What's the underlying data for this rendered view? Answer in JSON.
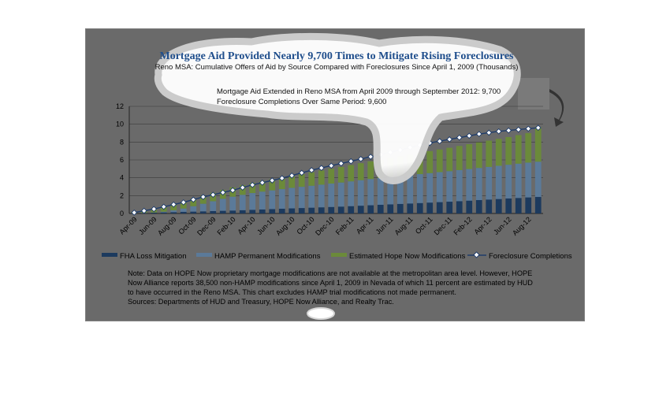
{
  "chart_data": {
    "type": "bar",
    "title": "Mortgage Aid Provided Nearly 9,700 Times to Mitigate Rising Foreclosures",
    "subtitle": "Reno MSA: Cumulative Offers of Aid by Source Compared with Foreclosures Since April 1, 2009  (Thousands)",
    "callout": [
      "Mortgage Aid Extended in Reno MSA from April 2009 through September 2012: 9,700",
      "Foreclosure Completions Over Same Period: 9,600"
    ],
    "xlabel": "",
    "ylabel": "",
    "ylim": [
      0,
      12
    ],
    "yticks": [
      "0",
      "2",
      "4",
      "6",
      "8",
      "10",
      "12"
    ],
    "grid": true,
    "stacked": true,
    "legend_position": "bottom",
    "tick_labels": [
      "Apr-09",
      "Jun-09",
      "Aug-09",
      "Oct-09",
      "Dec-09",
      "Feb-10",
      "Apr-10",
      "Jun-10",
      "Aug-10",
      "Oct-10",
      "Dec-10",
      "Feb-11",
      "Apr-11",
      "Jun-11",
      "Aug-11",
      "Oct-11",
      "Dec-11",
      "Feb-12",
      "Apr-12",
      "Jun-12",
      "Aug-12"
    ],
    "categories": [
      "Apr-09",
      "May-09",
      "Jun-09",
      "Jul-09",
      "Aug-09",
      "Sep-09",
      "Oct-09",
      "Nov-09",
      "Dec-09",
      "Jan-10",
      "Feb-10",
      "Mar-10",
      "Apr-10",
      "May-10",
      "Jun-10",
      "Jul-10",
      "Aug-10",
      "Sep-10",
      "Oct-10",
      "Nov-10",
      "Dec-10",
      "Jan-11",
      "Feb-11",
      "Mar-11",
      "Apr-11",
      "May-11",
      "Jun-11",
      "Jul-11",
      "Aug-11",
      "Sep-11",
      "Oct-11",
      "Nov-11",
      "Dec-11",
      "Jan-12",
      "Feb-12",
      "Mar-12",
      "Apr-12",
      "May-12",
      "Jun-12",
      "Jul-12",
      "Aug-12",
      "Sep-12"
    ],
    "series": [
      {
        "name": "FHA Loss Mitigation",
        "kind": "bar",
        "color": "#1c3a5e",
        "values": [
          0.03,
          0.06,
          0.09,
          0.12,
          0.15,
          0.18,
          0.21,
          0.24,
          0.27,
          0.3,
          0.33,
          0.37,
          0.41,
          0.45,
          0.49,
          0.53,
          0.57,
          0.61,
          0.65,
          0.69,
          0.73,
          0.77,
          0.82,
          0.87,
          0.92,
          0.97,
          1.02,
          1.07,
          1.12,
          1.17,
          1.22,
          1.27,
          1.32,
          1.38,
          1.44,
          1.5,
          1.56,
          1.62,
          1.68,
          1.74,
          1.8,
          1.85
        ]
      },
      {
        "name": "HAMP Permanent Modifications",
        "kind": "bar",
        "color": "#5b7a99",
        "values": [
          0.0,
          0.0,
          0.02,
          0.08,
          0.2,
          0.38,
          0.6,
          0.85,
          1.1,
          1.35,
          1.55,
          1.72,
          1.88,
          2.0,
          2.1,
          2.2,
          2.3,
          2.38,
          2.46,
          2.54,
          2.62,
          2.7,
          2.78,
          2.86,
          2.94,
          3.0,
          3.06,
          3.12,
          3.18,
          3.24,
          3.3,
          3.36,
          3.42,
          3.48,
          3.54,
          3.6,
          3.66,
          3.72,
          3.78,
          3.84,
          3.9,
          3.95
        ]
      },
      {
        "name": "Estimated Hope Now Modifications",
        "kind": "bar",
        "color": "#6b8a3a",
        "values": [
          0.15,
          0.3,
          0.45,
          0.55,
          0.65,
          0.75,
          0.85,
          0.9,
          0.95,
          1.0,
          1.05,
          1.1,
          1.15,
          1.2,
          1.25,
          1.3,
          1.35,
          1.42,
          1.5,
          1.58,
          1.66,
          1.74,
          1.82,
          1.9,
          1.98,
          2.06,
          2.14,
          2.22,
          2.3,
          2.38,
          2.46,
          2.54,
          2.62,
          2.7,
          2.78,
          2.86,
          2.94,
          3.02,
          3.1,
          3.2,
          3.3,
          3.9
        ]
      },
      {
        "name": "Foreclosure Completions",
        "kind": "line",
        "color": "#1f3c6b",
        "values": [
          0.1,
          0.3,
          0.5,
          0.75,
          1.0,
          1.25,
          1.55,
          1.85,
          2.1,
          2.35,
          2.6,
          2.9,
          3.2,
          3.45,
          3.7,
          3.95,
          4.25,
          4.55,
          4.85,
          5.1,
          5.35,
          5.6,
          5.85,
          6.1,
          6.35,
          6.6,
          6.85,
          7.1,
          7.4,
          7.65,
          7.9,
          8.1,
          8.3,
          8.5,
          8.7,
          8.9,
          9.05,
          9.2,
          9.3,
          9.4,
          9.5,
          9.6
        ]
      }
    ],
    "notes": [
      "Note: Data on HOPE Now proprietary mortgage modifications are not available at the metropolitan area level. However, HOPE",
      "Now Alliance reports 38,500 non-HAMP modifications since April 1, 2009 in Nevada of which 11 percent are estimated by HUD",
      "to have occurred in the Reno MSA. This chart excludes HAMP trial modifications not made permanent.",
      "Sources: Departments of HUD and Treasury, HOPE Now Alliance, and Realty Trac."
    ]
  }
}
